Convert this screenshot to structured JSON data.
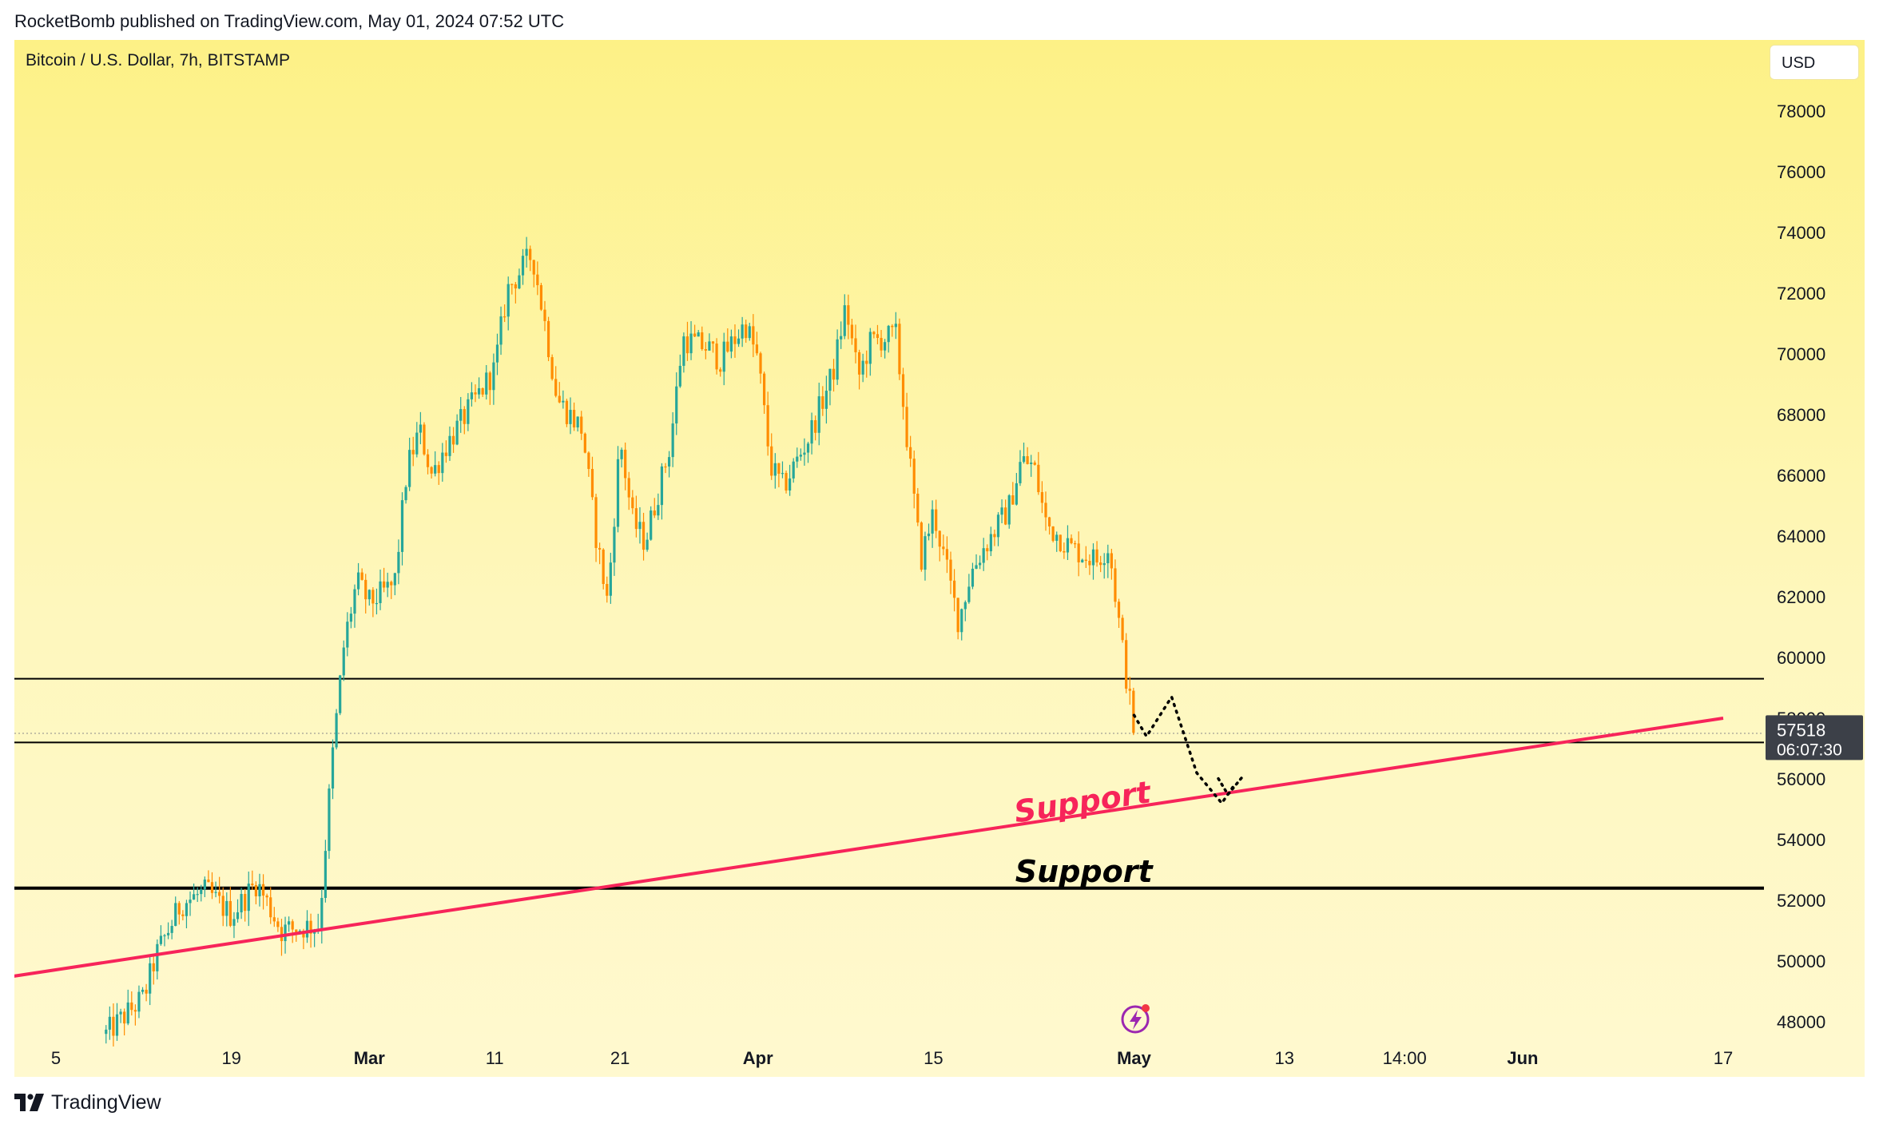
{
  "header": {
    "publish_line": "RocketBomb published on TradingView.com, May 01, 2024 07:52 UTC"
  },
  "chart_header": {
    "symbol_title": "Bitcoin / U.S. Dollar, 7h, BITSTAMP",
    "currency_label": "USD"
  },
  "footer": {
    "brand": "TradingView"
  },
  "colors": {
    "up_candle": "#26a69a",
    "down_candle": "#ff8c00",
    "support_line": "#f7245a",
    "horizontal_lines": "#000000",
    "price_label_bg": "#3c4048"
  },
  "chart_data": {
    "type": "candlestick",
    "y_axis": {
      "ticks": [
        48000,
        50000,
        52000,
        54000,
        56000,
        58000,
        60000,
        62000,
        64000,
        66000,
        68000,
        70000,
        72000,
        74000,
        76000,
        78000
      ],
      "range": [
        47000,
        80000
      ]
    },
    "x_axis": {
      "ticks": [
        {
          "label": "5",
          "date": "2024-02-05",
          "bold": false
        },
        {
          "label": "19",
          "date": "2024-02-19",
          "bold": false
        },
        {
          "label": "Mar",
          "date": "2024-03-01",
          "bold": true
        },
        {
          "label": "11",
          "date": "2024-03-11",
          "bold": false
        },
        {
          "label": "21",
          "date": "2024-03-21",
          "bold": false
        },
        {
          "label": "Apr",
          "date": "2024-04-01",
          "bold": true
        },
        {
          "label": "15",
          "date": "2024-04-15",
          "bold": false
        },
        {
          "label": "May",
          "date": "2024-05-01",
          "bold": true
        },
        {
          "label": "13",
          "date": "2024-05-13",
          "bold": false
        },
        {
          "label": "14:00",
          "date": "2024-05-22T14:00",
          "bold": false
        },
        {
          "label": "Jun",
          "date": "2024-06-01",
          "bold": true
        },
        {
          "label": "17",
          "date": "2024-06-17",
          "bold": false
        }
      ]
    },
    "price_path": [
      [
        "2024-02-09",
        47600
      ],
      [
        "2024-02-12",
        48800
      ],
      [
        "2024-02-13",
        50200
      ],
      [
        "2024-02-15",
        51900
      ],
      [
        "2024-02-17",
        52300
      ],
      [
        "2024-02-19",
        51500
      ],
      [
        "2024-02-21",
        52600
      ],
      [
        "2024-02-23",
        51000
      ],
      [
        "2024-02-26",
        51200
      ],
      [
        "2024-02-27",
        56500
      ],
      [
        "2024-02-28",
        60500
      ],
      [
        "2024-02-29",
        62500
      ],
      [
        "2024-03-01",
        61800
      ],
      [
        "2024-03-03",
        62400
      ],
      [
        "2024-03-04",
        66200
      ],
      [
        "2024-03-05",
        67500
      ],
      [
        "2024-03-06",
        66000
      ],
      [
        "2024-03-07",
        66900
      ],
      [
        "2024-03-09",
        68200
      ],
      [
        "2024-03-11",
        69500
      ],
      [
        "2024-03-12",
        72100
      ],
      [
        "2024-03-14",
        73300
      ],
      [
        "2024-03-15",
        71000
      ],
      [
        "2024-03-16",
        68500
      ],
      [
        "2024-03-18",
        67500
      ],
      [
        "2024-03-19",
        64200
      ],
      [
        "2024-03-20",
        61800
      ],
      [
        "2024-03-21",
        67200
      ],
      [
        "2024-03-22",
        64500
      ],
      [
        "2024-03-23",
        63800
      ],
      [
        "2024-03-25",
        67000
      ],
      [
        "2024-03-26",
        70500
      ],
      [
        "2024-03-28",
        70200
      ],
      [
        "2024-03-29",
        69800
      ],
      [
        "2024-03-31",
        71000
      ],
      [
        "2024-04-01",
        69800
      ],
      [
        "2024-04-02",
        66300
      ],
      [
        "2024-04-03",
        65600
      ],
      [
        "2024-04-05",
        67200
      ],
      [
        "2024-04-07",
        69400
      ],
      [
        "2024-04-08",
        71600
      ],
      [
        "2024-04-09",
        69200
      ],
      [
        "2024-04-10",
        70400
      ],
      [
        "2024-04-12",
        70600
      ],
      [
        "2024-04-13",
        66800
      ],
      [
        "2024-04-14",
        63200
      ],
      [
        "2024-04-15",
        64800
      ],
      [
        "2024-04-17",
        61200
      ],
      [
        "2024-04-18",
        62800
      ],
      [
        "2024-04-19",
        63600
      ],
      [
        "2024-04-21",
        64900
      ],
      [
        "2024-04-22",
        66500
      ],
      [
        "2024-04-23",
        66300
      ],
      [
        "2024-04-24",
        64400
      ],
      [
        "2024-04-26",
        63600
      ],
      [
        "2024-04-28",
        63200
      ],
      [
        "2024-04-29",
        63700
      ],
      [
        "2024-04-30",
        60500
      ],
      [
        "2024-05-01",
        57518
      ]
    ],
    "horizontal_lines": [
      {
        "price": 59300,
        "style": "thin"
      },
      {
        "price": 57200,
        "style": "thin"
      },
      {
        "price": 52400,
        "style": "thick"
      }
    ],
    "trendline": {
      "from": [
        "2024-01-31",
        49400
      ],
      "to": [
        "2024-06-17",
        58000
      ]
    },
    "annotations": [
      {
        "text": "Support",
        "color": "#f7245a",
        "anchor": [
          "2024-04-27",
          54900
        ]
      },
      {
        "text": "Support",
        "color": "#000000",
        "anchor": [
          "2024-04-27",
          52600
        ]
      }
    ],
    "projection_path": [
      [
        "2024-05-01",
        58100
      ],
      [
        "2024-05-02",
        57400
      ],
      [
        "2024-05-04",
        58700
      ],
      [
        "2024-05-06",
        56200
      ],
      [
        "2024-05-08",
        55200
      ],
      [
        "2024-05-09",
        55800
      ]
    ],
    "last_price": {
      "value": "57518",
      "countdown": "06:07:30",
      "price": 57518
    },
    "current_price_dotted": 57500
  }
}
